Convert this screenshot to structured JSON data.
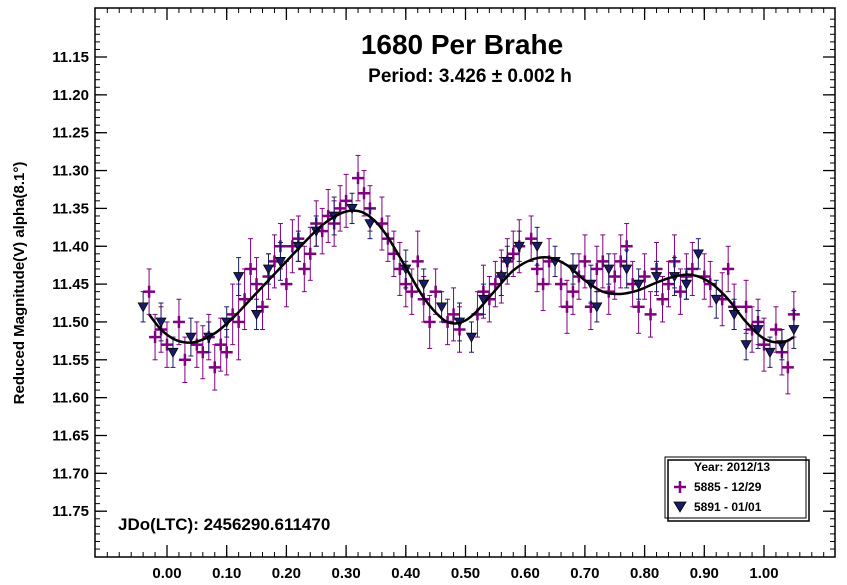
{
  "chart_data": {
    "type": "scatter",
    "title": "1680 Per Brahe",
    "subtitle": "Period: 3.426 ± 0.002 h",
    "ylabel": "Reduced Magnitude(V) alpha(8.1°)",
    "xlabel": "",
    "annotation": "JDo(LTC): 2456290.611470",
    "xlim": [
      -0.06,
      1.07
    ],
    "ylim": [
      11.8,
      11.1
    ],
    "y_inverted": true,
    "x_ticks": [
      0.0,
      0.1,
      0.2,
      0.3,
      0.4,
      0.5,
      0.6,
      0.7,
      0.8,
      0.9,
      1.0
    ],
    "x_tick_labels": [
      "0.00",
      "0.10",
      "0.20",
      "0.30",
      "0.40",
      "0.50",
      "0.60",
      "0.70",
      "0.80",
      "0.90",
      "1.00"
    ],
    "y_ticks": [
      11.15,
      11.2,
      11.25,
      11.3,
      11.35,
      11.4,
      11.45,
      11.5,
      11.55,
      11.6,
      11.65,
      11.7,
      11.75
    ],
    "y_tick_labels": [
      "11.15",
      "11.20",
      "11.25",
      "11.30",
      "11.35",
      "11.40",
      "11.45",
      "11.50",
      "11.55",
      "11.60",
      "11.65",
      "11.70",
      "11.75"
    ],
    "grid": false,
    "legend": {
      "title": "Year: 2012/13",
      "placement": "bottom-right",
      "entries": [
        "5885 - 12/29",
        "5891 - 01/01"
      ]
    },
    "colors": {
      "series_plus": "#800080",
      "series_triangle": "#1a1a66",
      "fit": "#000000"
    },
    "fit_curve": {
      "x": [
        -0.03,
        -0.01,
        0.01,
        0.03,
        0.05,
        0.08,
        0.11,
        0.14,
        0.17,
        0.2,
        0.23,
        0.26,
        0.29,
        0.31,
        0.33,
        0.35,
        0.37,
        0.4,
        0.43,
        0.46,
        0.48,
        0.5,
        0.52,
        0.55,
        0.58,
        0.61,
        0.64,
        0.67,
        0.7,
        0.73,
        0.76,
        0.79,
        0.82,
        0.85,
        0.88,
        0.91,
        0.94,
        0.97,
        1.0,
        1.03,
        1.05
      ],
      "y": [
        11.49,
        11.51,
        11.522,
        11.527,
        11.526,
        11.515,
        11.495,
        11.47,
        11.445,
        11.42,
        11.395,
        11.372,
        11.357,
        11.353,
        11.356,
        11.368,
        11.388,
        11.428,
        11.468,
        11.495,
        11.502,
        11.498,
        11.485,
        11.458,
        11.432,
        11.418,
        11.415,
        11.425,
        11.445,
        11.46,
        11.463,
        11.458,
        11.448,
        11.44,
        11.438,
        11.448,
        11.47,
        11.5,
        11.522,
        11.527,
        11.52
      ]
    },
    "series": [
      {
        "name": "5885 - 12/29",
        "marker": "plus",
        "x": [
          -0.03,
          -0.02,
          -0.01,
          0.0,
          0.02,
          0.03,
          0.05,
          0.06,
          0.07,
          0.08,
          0.09,
          0.1,
          0.11,
          0.12,
          0.13,
          0.14,
          0.15,
          0.16,
          0.17,
          0.18,
          0.19,
          0.2,
          0.21,
          0.22,
          0.23,
          0.24,
          0.25,
          0.26,
          0.27,
          0.28,
          0.29,
          0.3,
          0.32,
          0.33,
          0.34,
          0.36,
          0.37,
          0.38,
          0.39,
          0.4,
          0.41,
          0.42,
          0.43,
          0.44,
          0.45,
          0.47,
          0.48,
          0.49,
          0.52,
          0.53,
          0.54,
          0.55,
          0.56,
          0.57,
          0.58,
          0.59,
          0.61,
          0.62,
          0.63,
          0.64,
          0.66,
          0.67,
          0.68,
          0.69,
          0.7,
          0.71,
          0.72,
          0.73,
          0.74,
          0.75,
          0.76,
          0.77,
          0.78,
          0.79,
          0.8,
          0.81,
          0.82,
          0.83,
          0.84,
          0.85,
          0.86,
          0.87,
          0.88,
          0.9,
          0.91,
          0.93,
          0.94,
          0.95,
          0.97,
          0.98,
          0.99,
          1.0,
          1.02,
          1.03,
          1.04,
          1.05
        ],
        "y": [
          11.46,
          11.52,
          11.51,
          11.53,
          11.5,
          11.55,
          11.53,
          11.54,
          11.52,
          11.56,
          11.53,
          11.54,
          11.49,
          11.5,
          11.47,
          11.43,
          11.45,
          11.48,
          11.44,
          11.42,
          11.4,
          11.45,
          11.4,
          11.39,
          11.43,
          11.41,
          11.37,
          11.38,
          11.36,
          11.37,
          11.35,
          11.34,
          11.31,
          11.33,
          11.35,
          11.37,
          11.39,
          11.41,
          11.43,
          11.45,
          11.46,
          11.42,
          11.47,
          11.5,
          11.46,
          11.5,
          11.49,
          11.51,
          11.49,
          11.46,
          11.47,
          11.45,
          11.44,
          11.42,
          11.41,
          11.4,
          11.39,
          11.43,
          11.45,
          11.42,
          11.45,
          11.48,
          11.46,
          11.44,
          11.42,
          11.48,
          11.43,
          11.42,
          11.46,
          11.44,
          11.42,
          11.4,
          11.45,
          11.48,
          11.44,
          11.49,
          11.43,
          11.47,
          11.45,
          11.42,
          11.46,
          11.44,
          11.43,
          11.44,
          11.45,
          11.47,
          11.43,
          11.48,
          11.48,
          11.51,
          11.5,
          11.53,
          11.51,
          11.54,
          11.56,
          11.49
        ],
        "err": [
          0.03,
          0.03,
          0.03,
          0.03,
          0.03,
          0.03,
          0.03,
          0.035,
          0.03,
          0.03,
          0.035,
          0.03,
          0.04,
          0.05,
          0.04,
          0.04,
          0.035,
          0.03,
          0.03,
          0.035,
          0.03,
          0.03,
          0.035,
          0.03,
          0.03,
          0.035,
          0.03,
          0.03,
          0.035,
          0.03,
          0.03,
          0.035,
          0.03,
          0.03,
          0.03,
          0.035,
          0.03,
          0.03,
          0.035,
          0.03,
          0.03,
          0.04,
          0.03,
          0.035,
          0.03,
          0.03,
          0.035,
          0.03,
          0.03,
          0.035,
          0.03,
          0.03,
          0.035,
          0.03,
          0.03,
          0.035,
          0.03,
          0.03,
          0.035,
          0.03,
          0.03,
          0.035,
          0.03,
          0.03,
          0.035,
          0.03,
          0.03,
          0.035,
          0.03,
          0.03,
          0.035,
          0.03,
          0.03,
          0.035,
          0.03,
          0.03,
          0.035,
          0.03,
          0.03,
          0.035,
          0.03,
          0.03,
          0.035,
          0.03,
          0.03,
          0.035,
          0.03,
          0.03,
          0.035,
          0.03,
          0.03,
          0.035,
          0.03,
          0.03,
          0.035,
          0.03
        ]
      },
      {
        "name": "5891 - 01/01",
        "marker": "triangle-down",
        "x": [
          -0.04,
          -0.01,
          0.01,
          0.04,
          0.07,
          0.1,
          0.12,
          0.15,
          0.17,
          0.19,
          0.22,
          0.25,
          0.28,
          0.31,
          0.34,
          0.4,
          0.43,
          0.46,
          0.49,
          0.51,
          0.53,
          0.56,
          0.57,
          0.59,
          0.62,
          0.65,
          0.68,
          0.71,
          0.72,
          0.74,
          0.77,
          0.79,
          0.82,
          0.85,
          0.87,
          0.89,
          0.92,
          0.95,
          0.97,
          0.99,
          1.01,
          1.03,
          1.05
        ],
        "y": [
          11.48,
          11.5,
          11.54,
          11.52,
          11.52,
          11.5,
          11.44,
          11.49,
          11.43,
          11.42,
          11.4,
          11.38,
          11.36,
          11.35,
          11.37,
          11.43,
          11.45,
          11.48,
          11.5,
          11.52,
          11.47,
          11.44,
          11.42,
          11.4,
          11.4,
          11.42,
          11.43,
          11.45,
          11.48,
          11.43,
          11.43,
          11.45,
          11.44,
          11.44,
          11.45,
          11.41,
          11.47,
          11.49,
          11.53,
          11.51,
          11.54,
          11.53,
          11.51
        ],
        "err": [
          0.02,
          0.025,
          0.02,
          0.025,
          0.02,
          0.02,
          0.025,
          0.02,
          0.02,
          0.025,
          0.02,
          0.02,
          0.025,
          0.02,
          0.02,
          0.025,
          0.02,
          0.02,
          0.025,
          0.02,
          0.02,
          0.025,
          0.02,
          0.02,
          0.025,
          0.02,
          0.02,
          0.025,
          0.02,
          0.02,
          0.025,
          0.02,
          0.02,
          0.025,
          0.02,
          0.02,
          0.025,
          0.02,
          0.02,
          0.025,
          0.02,
          0.02,
          0.025
        ]
      }
    ]
  }
}
